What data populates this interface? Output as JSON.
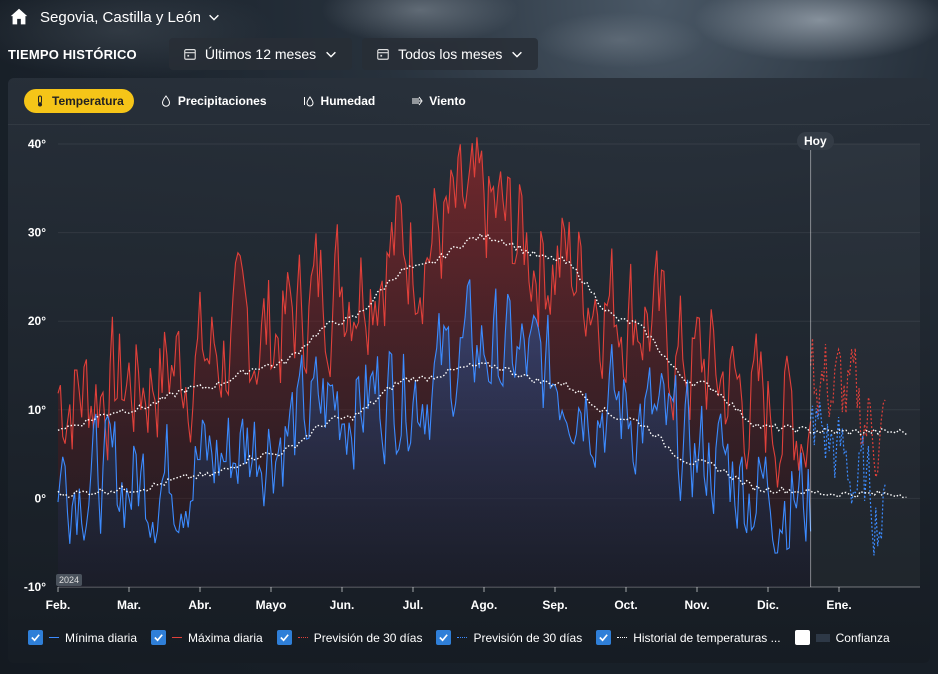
{
  "header": {
    "location": "Segovia, Castilla y León",
    "icons": {
      "home": "home-icon",
      "chevron": "chevron-down-icon"
    }
  },
  "filters": {
    "title": "TIEMPO HISTÓRICO",
    "period": "Últimos 12 meses",
    "months": "Todos los meses"
  },
  "tabs": [
    {
      "label": "Temperatura",
      "icon": "thermometer-icon",
      "active": true
    },
    {
      "label": "Precipitaciones",
      "icon": "drop-icon",
      "active": false
    },
    {
      "label": "Humedad",
      "icon": "humidity-icon",
      "active": false
    },
    {
      "label": "Viento",
      "icon": "wind-icon",
      "active": false
    }
  ],
  "chart": {
    "today_label": "Hoy",
    "year_label": "2024",
    "accent": "#f5c518",
    "max_color": "#e0403a",
    "min_color": "#3c8bff"
  },
  "legend": [
    {
      "label": "Mínima diaria",
      "checked": true
    },
    {
      "label": "Máxima diaria",
      "checked": true
    },
    {
      "label": "Previsión de 30 días",
      "checked": true
    },
    {
      "label": "Previsión de 30 días",
      "checked": true
    },
    {
      "label": "Historial de temperaturas ...",
      "checked": true
    },
    {
      "label": "Confianza",
      "checked": false
    }
  ],
  "chart_data": {
    "type": "line",
    "ylim": [
      -10,
      40
    ],
    "yticks": [
      "40°",
      "30°",
      "20°",
      "10°",
      "0°",
      "-10°"
    ],
    "ytick_values": [
      40,
      30,
      20,
      10,
      0,
      -10
    ],
    "x": [
      "Feb.",
      "Mar.",
      "Abr.",
      "Mayo",
      "Jun.",
      "Jul.",
      "Ago.",
      "Sep.",
      "Oct.",
      "Nov.",
      "Dic.",
      "Ene."
    ],
    "today_index": 10.6,
    "series": [
      {
        "name": "Máxima diaria",
        "values": [
          12,
          13,
          16,
          19,
          25,
          29,
          32,
          27,
          22,
          15,
          10,
          8
        ]
      },
      {
        "name": "Mínima diaria",
        "values": [
          3,
          2,
          4,
          7,
          11,
          13,
          17,
          14,
          10,
          5,
          1,
          -1
        ]
      },
      {
        "name": "Previsión de 30 días",
        "values": [
          null,
          null,
          null,
          null,
          null,
          null,
          null,
          null,
          null,
          null,
          15,
          7
        ]
      },
      {
        "name": "Previsión de 30 días",
        "values": [
          null,
          null,
          null,
          null,
          null,
          null,
          null,
          null,
          null,
          null,
          9,
          -2
        ]
      },
      {
        "name": "Historial de temperaturas ...",
        "values": [
          8,
          10,
          12.5,
          15,
          20,
          26,
          29.5,
          27,
          20,
          13,
          8,
          7.5
        ]
      },
      {
        "name": "Historial de temperaturas ...",
        "values": [
          0.5,
          1,
          2.5,
          5,
          9,
          13.5,
          15,
          13,
          9,
          4,
          1,
          0.5
        ]
      }
    ]
  }
}
